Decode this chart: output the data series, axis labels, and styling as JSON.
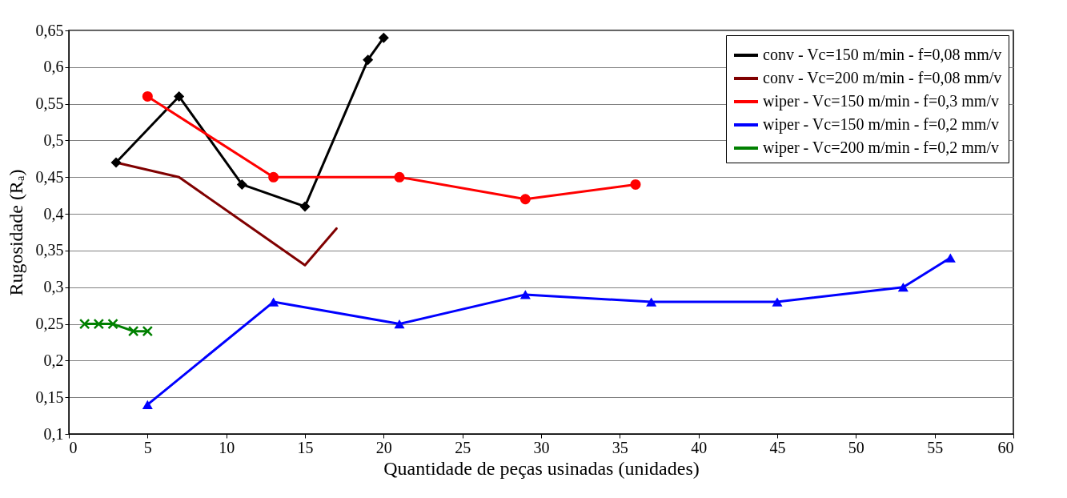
{
  "chart_data": {
    "type": "line",
    "xlabel": "Quantidade de peças usinadas (unidades)",
    "ylabel": "Rugosidade (Rₐ)",
    "xlim": [
      0,
      60
    ],
    "xticks": [
      0,
      5,
      10,
      15,
      20,
      25,
      30,
      35,
      40,
      45,
      50,
      55,
      60
    ],
    "ylim": [
      0.1,
      0.65
    ],
    "yticks": [
      {
        "value": 0.1,
        "label": "0,1"
      },
      {
        "value": 0.15,
        "label": "0,15"
      },
      {
        "value": 0.2,
        "label": "0,2"
      },
      {
        "value": 0.25,
        "label": "0,25"
      },
      {
        "value": 0.3,
        "label": "0,3"
      },
      {
        "value": 0.35,
        "label": "0,35"
      },
      {
        "value": 0.4,
        "label": "0,4"
      },
      {
        "value": 0.45,
        "label": "0,45"
      },
      {
        "value": 0.5,
        "label": "0,5"
      },
      {
        "value": 0.55,
        "label": "0,55"
      },
      {
        "value": 0.6,
        "label": "0,6"
      },
      {
        "value": 0.65,
        "label": "0,65"
      }
    ],
    "grid": "y",
    "legend": "top right",
    "series": [
      {
        "name": "conv - Vc=150 m/min - f=0,08 mm/v",
        "color": "#000000",
        "marker": "diamond",
        "x": [
          3,
          7,
          11,
          15,
          19,
          20
        ],
        "values": [
          0.47,
          0.56,
          0.44,
          0.41,
          0.61,
          0.64
        ]
      },
      {
        "name": "conv - Vc=200 m/min - f=0,08 mm/v",
        "color": "#800000",
        "marker": "none",
        "x": [
          3,
          7,
          11,
          15,
          17
        ],
        "values": [
          0.47,
          0.45,
          0.39,
          0.33,
          0.38
        ]
      },
      {
        "name": "wiper - Vc=150 m/min - f=0,3 mm/v",
        "color": "#ff0000",
        "marker": "circle",
        "x": [
          5,
          13,
          21,
          29,
          36
        ],
        "values": [
          0.56,
          0.45,
          0.45,
          0.42,
          0.44
        ]
      },
      {
        "name": "wiper - Vc=150 m/min - f=0,2 mm/v",
        "color": "#0000ff",
        "marker": "triangle",
        "x": [
          5,
          13,
          21,
          29,
          37,
          45,
          53,
          56
        ],
        "values": [
          0.14,
          0.28,
          0.25,
          0.29,
          0.28,
          0.28,
          0.3,
          0.34
        ]
      },
      {
        "name": "wiper - Vc=200 m/min - f=0,2 mm/v",
        "color": "#008000",
        "marker": "cross",
        "x": [
          1,
          1.9,
          2.8,
          4.1,
          5
        ],
        "values": [
          0.25,
          0.25,
          0.25,
          0.24,
          0.24
        ]
      }
    ]
  }
}
